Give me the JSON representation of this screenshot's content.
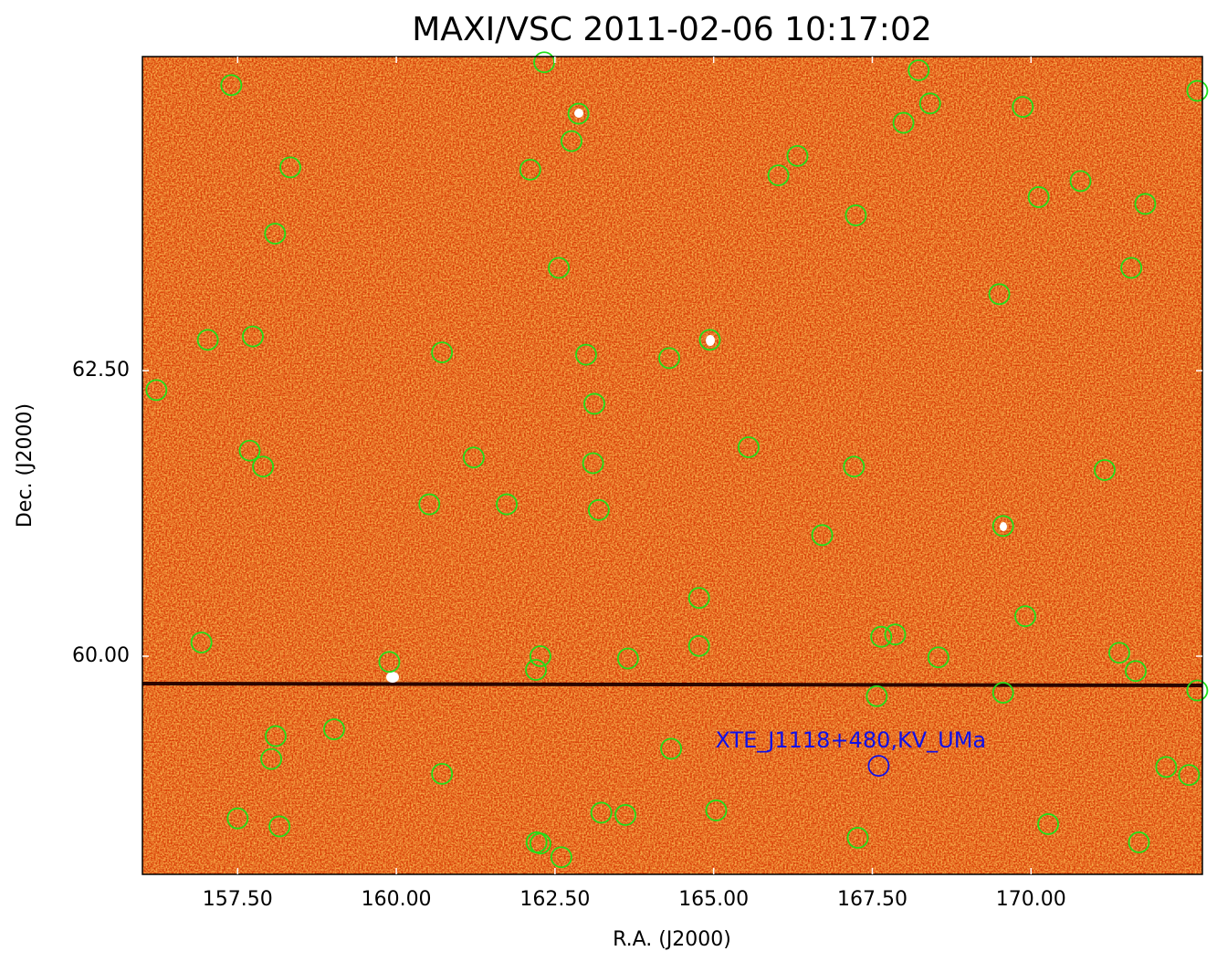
{
  "chart_data": {
    "type": "scatter",
    "title": "MAXI/VSC 2011-02-06 10:17:02",
    "xlabel": "R.A. (J2000)",
    "ylabel": "Dec. (J2000)",
    "xlim": [
      156.0,
      172.7
    ],
    "ylim": [
      58.09,
      65.25
    ],
    "xticks": [
      {
        "value": 157.5,
        "label": "157.50"
      },
      {
        "value": 160,
        "label": "160.00"
      },
      {
        "value": 162.5,
        "label": "162.50"
      },
      {
        "value": 165,
        "label": "165.00"
      },
      {
        "value": 167.5,
        "label": "167.50"
      },
      {
        "value": 170,
        "label": "170.00"
      }
    ],
    "yticks": [
      {
        "value": 60,
        "label": "60.00"
      },
      {
        "value": 62.5,
        "label": "62.50"
      }
    ],
    "series": [
      {
        "color": "#22e01a",
        "x": [
          157.4,
          162.33,
          168.23,
          172.62,
          162.87,
          168.41,
          169.87,
          167.99,
          162.76,
          158.33,
          162.11,
          166.32,
          166.02,
          170.78,
          170.12,
          171.8,
          167.24,
          158.09,
          162.56,
          171.58,
          169.5,
          157.03,
          157.74,
          164.94,
          160.72,
          162.99,
          164.3,
          156.22,
          163.12,
          157.69,
          161.22,
          165.55,
          157.9,
          163.1,
          167.21,
          171.16,
          160.52,
          161.74,
          163.19,
          166.71,
          169.56,
          164.77,
          169.91,
          156.93,
          167.64,
          167.86,
          164.77,
          159.89,
          162.27,
          163.65,
          168.54,
          171.39,
          162.2,
          171.65,
          167.57,
          169.56,
          172.62,
          158.1,
          159.02,
          158.03,
          164.33,
          160.72,
          172.13,
          172.49,
          157.5,
          158.16,
          163.23,
          163.61,
          165.04,
          170.27,
          167.27,
          162.21,
          162.27,
          162.6,
          171.7
        ],
        "y": [
          65.0,
          65.2,
          65.13,
          64.95,
          64.75,
          64.84,
          64.81,
          64.67,
          64.51,
          64.28,
          64.26,
          64.38,
          64.21,
          64.16,
          64.02,
          63.96,
          63.86,
          63.7,
          63.4,
          63.4,
          63.17,
          62.77,
          62.8,
          62.77,
          62.66,
          62.64,
          62.61,
          62.33,
          62.21,
          61.8,
          61.74,
          61.83,
          61.66,
          61.69,
          61.66,
          61.63,
          61.33,
          61.33,
          61.28,
          61.06,
          61.14,
          60.51,
          60.35,
          60.12,
          60.17,
          60.19,
          60.09,
          59.95,
          60.0,
          59.98,
          59.99,
          60.03,
          59.88,
          59.87,
          59.65,
          59.68,
          59.7,
          59.3,
          59.36,
          59.1,
          59.19,
          58.97,
          59.03,
          58.96,
          58.58,
          58.51,
          58.63,
          58.61,
          58.65,
          58.53,
          58.41,
          58.37,
          58.36,
          58.24,
          58.37
        ]
      }
    ],
    "annotations": [
      {
        "text": "XTE_J1118+480,KV_UMa",
        "x": 167.6,
        "y": 59.04,
        "color": "#1010e8"
      }
    ]
  }
}
